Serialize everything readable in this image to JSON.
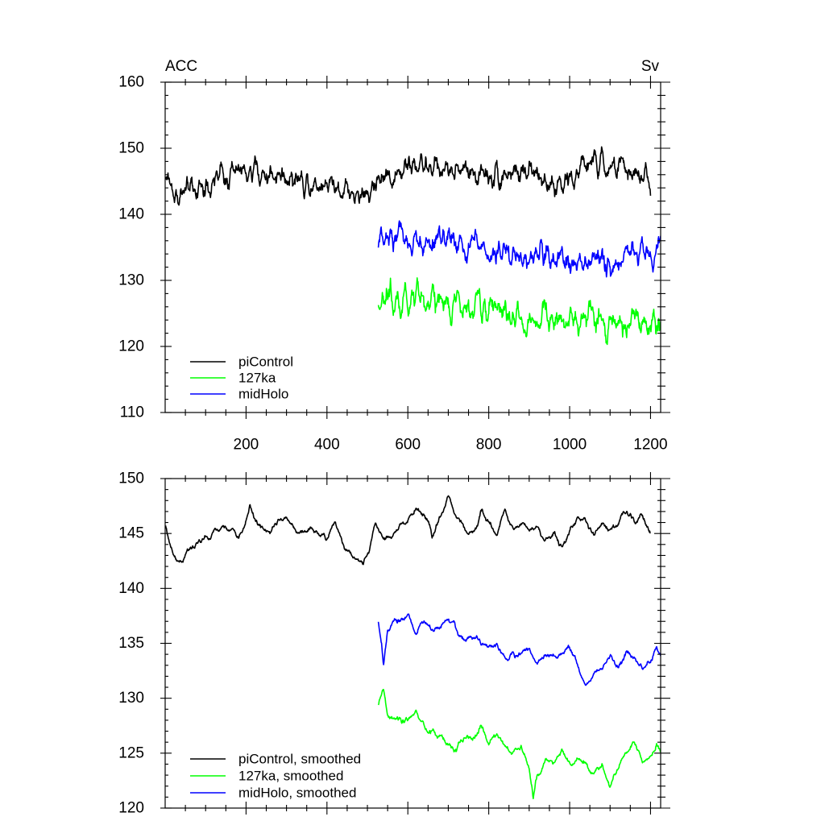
{
  "chart_data": [
    {
      "type": "line",
      "panel": "top",
      "left_label": "ACC",
      "right_label": "Sv",
      "xlim": [
        0,
        1225
      ],
      "ylim": [
        110,
        160
      ],
      "xticks": [
        200,
        400,
        600,
        800,
        1000,
        1200
      ],
      "xtick_labels": [
        "200",
        "400",
        "600",
        "800",
        "1000",
        "1200"
      ],
      "yticks": [
        110,
        120,
        130,
        140,
        150,
        160
      ],
      "ytick_labels": [
        "110",
        "120",
        "130",
        "140",
        "150",
        "160"
      ],
      "grid": false,
      "legend_position": "bottom-left",
      "series": [
        {
          "name": "piControl",
          "color": "#000000",
          "x_start": 1,
          "x_end": 1200,
          "anchors": [
            [
              1,
              146
            ],
            [
              30,
              142.5
            ],
            [
              80,
              144
            ],
            [
              100,
              144.5
            ],
            [
              150,
              146
            ],
            [
              200,
              146.5
            ],
            [
              250,
              146
            ],
            [
              300,
              146
            ],
            [
              350,
              145
            ],
            [
              400,
              145
            ],
            [
              450,
              144
            ],
            [
              490,
              142
            ],
            [
              520,
              145
            ],
            [
              560,
              146
            ],
            [
              600,
              147
            ],
            [
              650,
              147.5
            ],
            [
              700,
              147
            ],
            [
              750,
              146.5
            ],
            [
              800,
              146
            ],
            [
              850,
              146.5
            ],
            [
              900,
              146
            ],
            [
              950,
              145
            ],
            [
              1000,
              145
            ],
            [
              1050,
              148
            ],
            [
              1100,
              147
            ],
            [
              1150,
              146.5
            ],
            [
              1200,
              145
            ]
          ],
          "noise": 2.6,
          "smooth_window": 3
        },
        {
          "name": "127ka",
          "color": "#00ff00",
          "x_start": 527,
          "x_end": 1225,
          "anchors": [
            [
              527,
              127
            ],
            [
              560,
              127
            ],
            [
              600,
              127
            ],
            [
              650,
              127
            ],
            [
              700,
              126
            ],
            [
              750,
              126
            ],
            [
              800,
              126
            ],
            [
              850,
              125
            ],
            [
              900,
              123
            ],
            [
              950,
              124
            ],
            [
              1000,
              124
            ],
            [
              1050,
              124
            ],
            [
              1100,
              123
            ],
            [
              1150,
              124.5
            ],
            [
              1200,
              124
            ],
            [
              1225,
              125
            ]
          ],
          "noise": 3.0,
          "smooth_window": 3
        },
        {
          "name": "midHolo",
          "color": "#0000ff",
          "x_start": 527,
          "x_end": 1225,
          "anchors": [
            [
              527,
              136
            ],
            [
              560,
              136.5
            ],
            [
              600,
              136
            ],
            [
              650,
              136
            ],
            [
              700,
              135.5
            ],
            [
              750,
              135
            ],
            [
              800,
              134.5
            ],
            [
              850,
              134
            ],
            [
              900,
              133
            ],
            [
              950,
              134
            ],
            [
              1000,
              133
            ],
            [
              1050,
              133
            ],
            [
              1100,
              132
            ],
            [
              1150,
              133
            ],
            [
              1200,
              133.5
            ],
            [
              1225,
              134
            ]
          ],
          "noise": 2.8,
          "smooth_window": 3
        }
      ]
    },
    {
      "type": "line",
      "panel": "bottom",
      "xlim": [
        0,
        1225
      ],
      "ylim": [
        120,
        150
      ],
      "xticks": [
        200,
        400,
        600,
        800,
        1000,
        1200
      ],
      "yticks": [
        120,
        125,
        130,
        135,
        140,
        145,
        150
      ],
      "ytick_labels": [
        "120",
        "125",
        "130",
        "135",
        "140",
        "145",
        "150"
      ],
      "grid": false,
      "legend_position": "bottom-left",
      "series": [
        {
          "name": "piControl, smoothed",
          "color": "#000000",
          "x_start": 1,
          "x_end": 1200,
          "anchors": [
            [
              1,
              145.5
            ],
            [
              20,
              143
            ],
            [
              40,
              142.5
            ],
            [
              60,
              143.5
            ],
            [
              80,
              144
            ],
            [
              100,
              144.5
            ],
            [
              120,
              145
            ],
            [
              140,
              145.5
            ],
            [
              160,
              145.5
            ],
            [
              180,
              144.5
            ],
            [
              200,
              146
            ],
            [
              210,
              147.5
            ],
            [
              220,
              146.5
            ],
            [
              250,
              145
            ],
            [
              280,
              146
            ],
            [
              300,
              146.5
            ],
            [
              330,
              145
            ],
            [
              360,
              145.5
            ],
            [
              380,
              145
            ],
            [
              400,
              144.5
            ],
            [
              420,
              146
            ],
            [
              440,
              144
            ],
            [
              460,
              143
            ],
            [
              490,
              142
            ],
            [
              500,
              143
            ],
            [
              520,
              146
            ],
            [
              540,
              144.5
            ],
            [
              560,
              145
            ],
            [
              600,
              146
            ],
            [
              620,
              147.5
            ],
            [
              650,
              146
            ],
            [
              660,
              144.5
            ],
            [
              680,
              146.5
            ],
            [
              700,
              148.5
            ],
            [
              720,
              146.5
            ],
            [
              740,
              145.5
            ],
            [
              760,
              145
            ],
            [
              780,
              147
            ],
            [
              800,
              146
            ],
            [
              820,
              145
            ],
            [
              840,
              147
            ],
            [
              860,
              145.5
            ],
            [
              880,
              146
            ],
            [
              900,
              145
            ],
            [
              920,
              145.5
            ],
            [
              940,
              144.5
            ],
            [
              960,
              145
            ],
            [
              980,
              144
            ],
            [
              1000,
              145
            ],
            [
              1020,
              146.5
            ],
            [
              1040,
              146
            ],
            [
              1060,
              145
            ],
            [
              1080,
              146
            ],
            [
              1100,
              145.5
            ],
            [
              1120,
              146
            ],
            [
              1140,
              147
            ],
            [
              1160,
              146
            ],
            [
              1180,
              146.5
            ],
            [
              1200,
              145
            ]
          ],
          "noise": 0.45,
          "smooth_window": 5
        },
        {
          "name": "127ka, smoothed",
          "color": "#00ff00",
          "x_start": 527,
          "x_end": 1225,
          "anchors": [
            [
              527,
              129.5
            ],
            [
              540,
              130.5
            ],
            [
              550,
              128.5
            ],
            [
              570,
              128
            ],
            [
              600,
              128
            ],
            [
              620,
              129
            ],
            [
              640,
              127.5
            ],
            [
              660,
              127
            ],
            [
              680,
              126.5
            ],
            [
              700,
              126
            ],
            [
              720,
              125.5
            ],
            [
              740,
              126.5
            ],
            [
              760,
              126
            ],
            [
              780,
              127.5
            ],
            [
              800,
              126
            ],
            [
              820,
              127
            ],
            [
              840,
              125.5
            ],
            [
              860,
              125
            ],
            [
              880,
              126
            ],
            [
              900,
              123.5
            ],
            [
              910,
              121
            ],
            [
              920,
              123
            ],
            [
              940,
              124.5
            ],
            [
              960,
              124
            ],
            [
              980,
              125
            ],
            [
              1000,
              124
            ],
            [
              1020,
              124.5
            ],
            [
              1040,
              124
            ],
            [
              1060,
              123
            ],
            [
              1080,
              124
            ],
            [
              1100,
              122
            ],
            [
              1120,
              123.5
            ],
            [
              1140,
              125
            ],
            [
              1160,
              126
            ],
            [
              1180,
              124
            ],
            [
              1200,
              124.5
            ],
            [
              1215,
              126
            ],
            [
              1225,
              125
            ]
          ],
          "noise": 0.5,
          "smooth_window": 5
        },
        {
          "name": "midHolo, smoothed",
          "color": "#0000ff",
          "x_start": 527,
          "x_end": 1225,
          "anchors": [
            [
              527,
              137
            ],
            [
              535,
              135
            ],
            [
              540,
              133
            ],
            [
              550,
              136
            ],
            [
              570,
              137
            ],
            [
              600,
              137.5
            ],
            [
              620,
              136
            ],
            [
              640,
              137
            ],
            [
              660,
              136
            ],
            [
              680,
              136.5
            ],
            [
              700,
              137
            ],
            [
              720,
              136
            ],
            [
              740,
              135.5
            ],
            [
              760,
              135.5
            ],
            [
              780,
              135
            ],
            [
              800,
              134.5
            ],
            [
              820,
              135
            ],
            [
              840,
              133.5
            ],
            [
              860,
              134
            ],
            [
              880,
              134
            ],
            [
              900,
              134.5
            ],
            [
              920,
              133
            ],
            [
              940,
              134
            ],
            [
              960,
              133.5
            ],
            [
              980,
              134
            ],
            [
              1000,
              134.5
            ],
            [
              1020,
              133
            ],
            [
              1040,
              131
            ],
            [
              1060,
              132
            ],
            [
              1080,
              133
            ],
            [
              1100,
              134
            ],
            [
              1120,
              133
            ],
            [
              1140,
              134
            ],
            [
              1160,
              134
            ],
            [
              1180,
              132.5
            ],
            [
              1200,
              133.5
            ],
            [
              1215,
              134.5
            ],
            [
              1225,
              134
            ]
          ],
          "noise": 0.5,
          "smooth_window": 5
        }
      ]
    }
  ]
}
